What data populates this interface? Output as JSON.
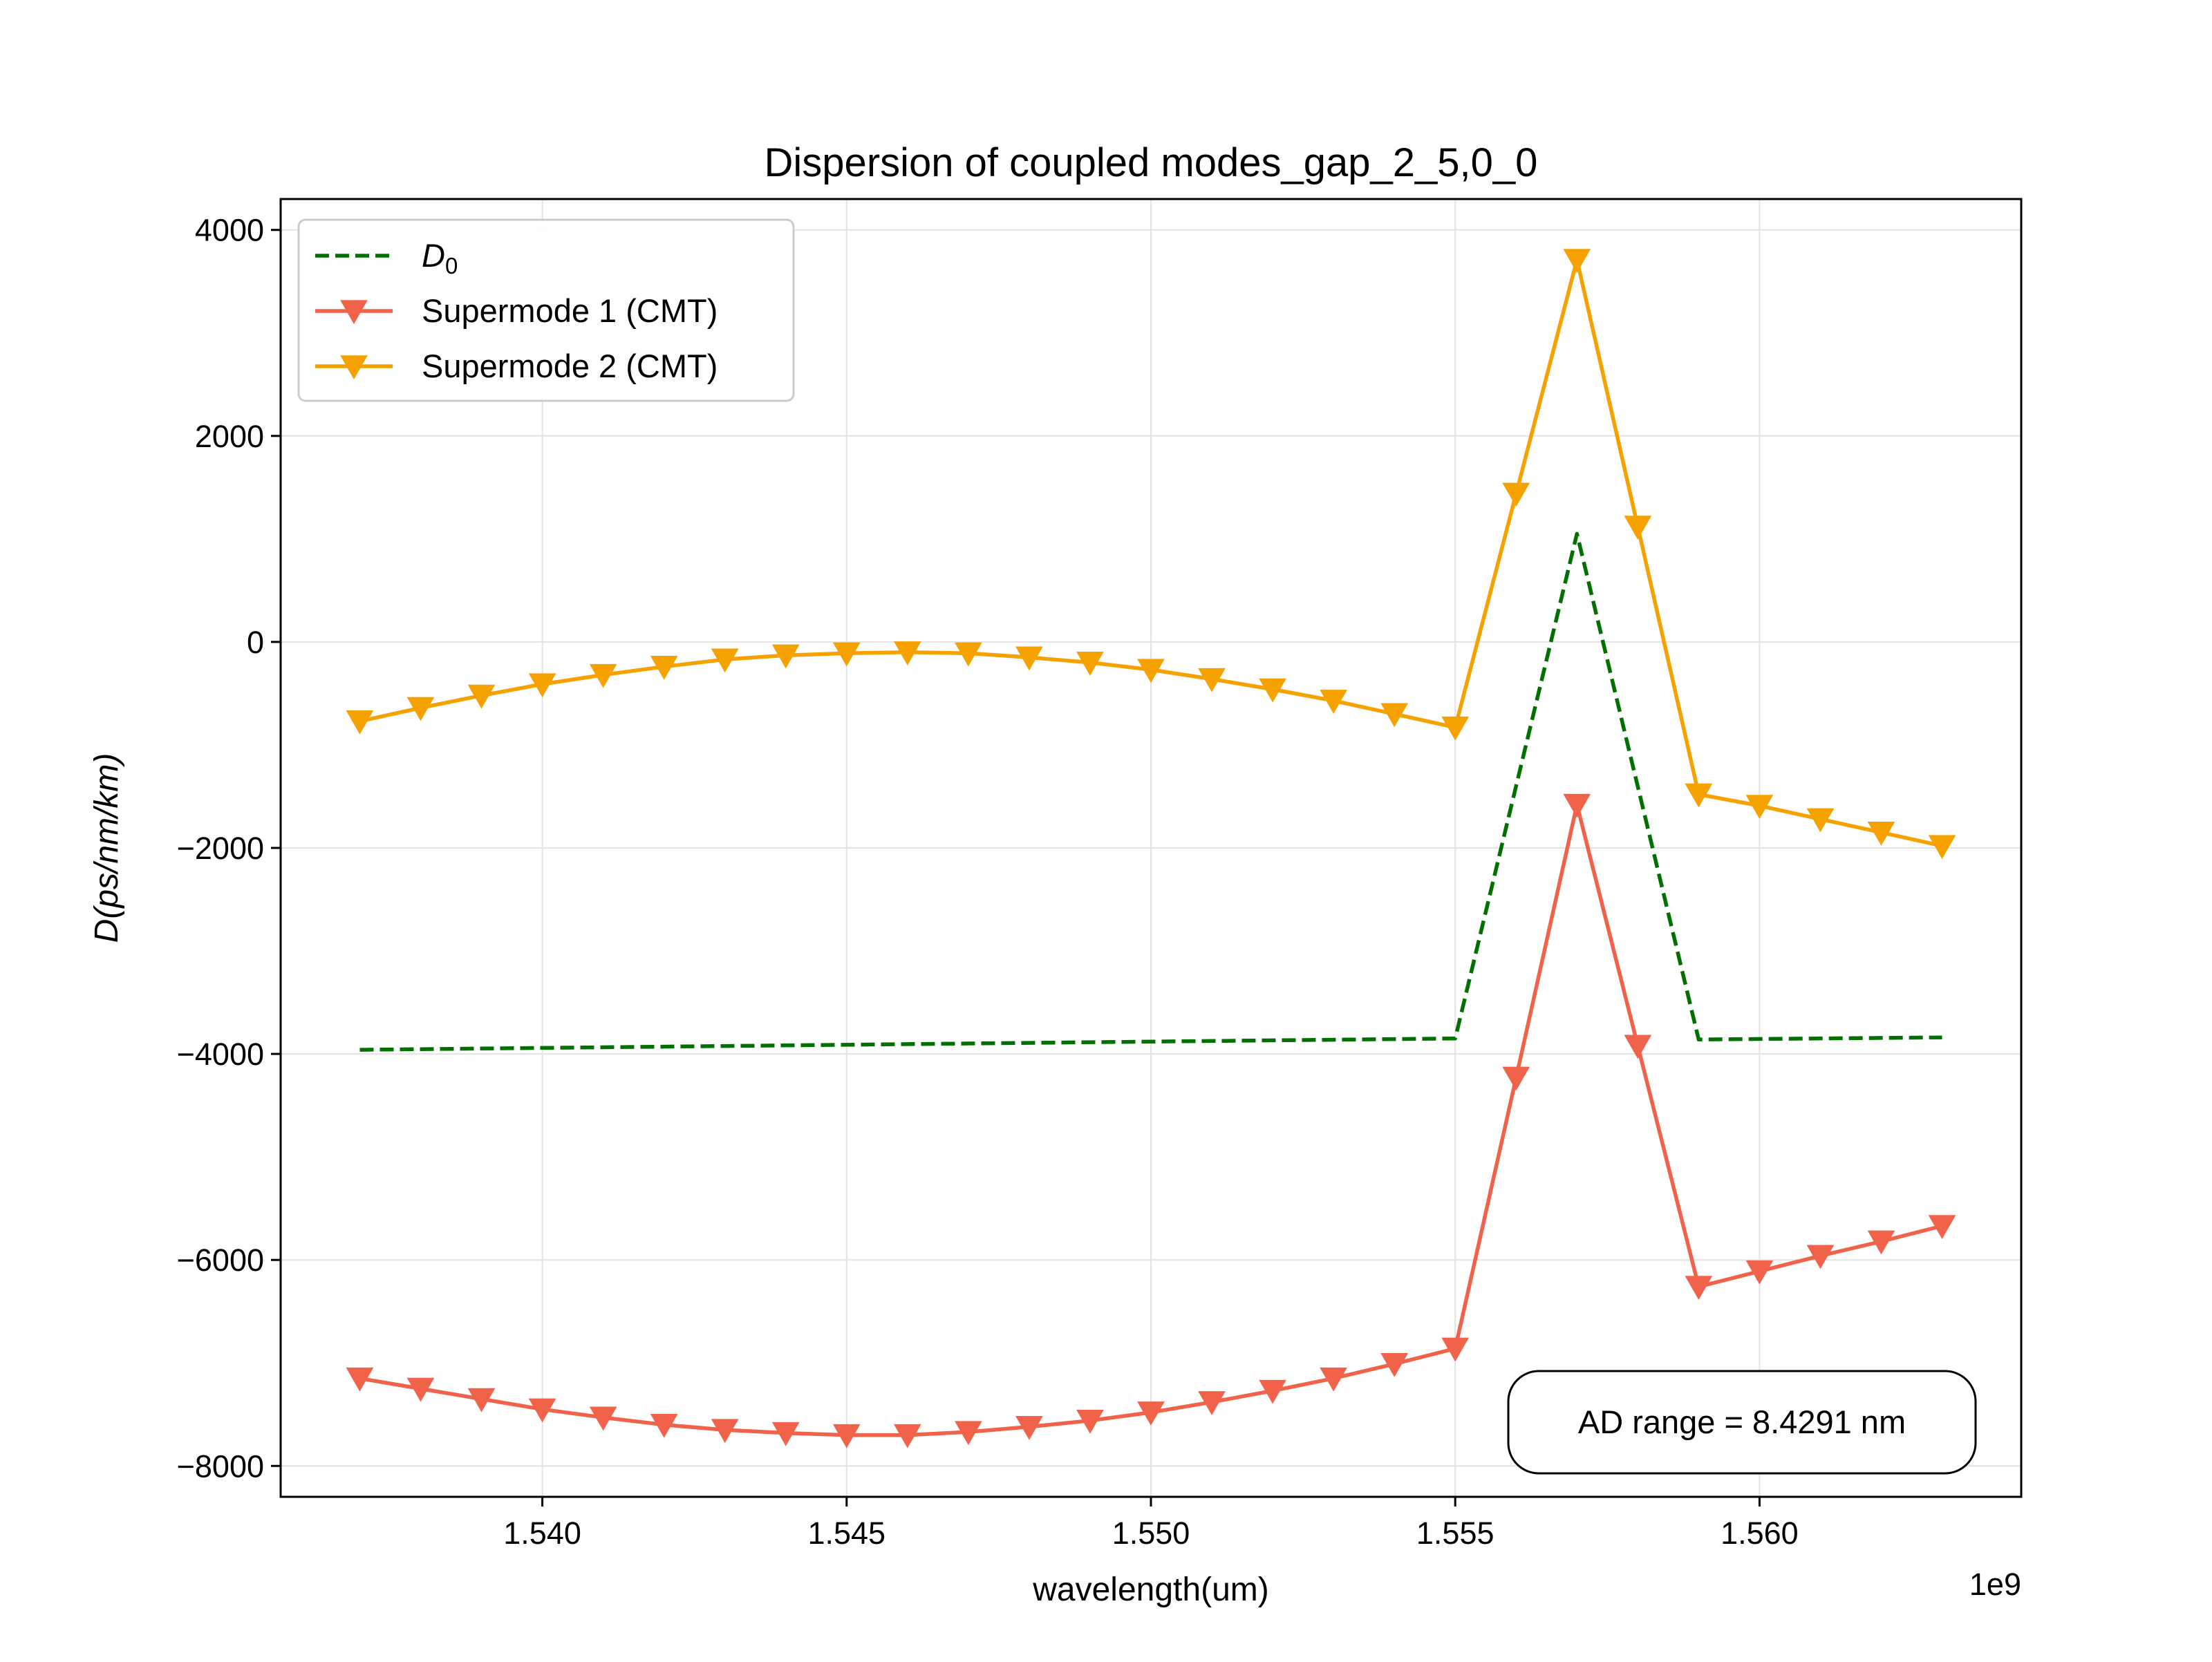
{
  "chart_data": {
    "type": "line",
    "title": "Dispersion of coupled modes_gap_2_5,0_0",
    "xlabel": "wavelength(um)",
    "ylabel": "D(ps/nm/km)",
    "x_offset_label": "1e9",
    "xlim": [
      1.5357,
      1.5643
    ],
    "ylim": [
      -8300,
      4300
    ],
    "xticks": [
      1.54,
      1.545,
      1.55,
      1.555,
      1.56
    ],
    "xtick_labels": [
      "1.540",
      "1.545",
      "1.550",
      "1.555",
      "1.560"
    ],
    "yticks": [
      -8000,
      -6000,
      -4000,
      -2000,
      0,
      2000,
      4000
    ],
    "ytick_labels": [
      "−8000",
      "−6000",
      "−4000",
      "−2000",
      "0",
      "2000",
      "4000"
    ],
    "grid": true,
    "legend_position": "top-left",
    "x": [
      1.537,
      1.538,
      1.539,
      1.54,
      1.541,
      1.542,
      1.543,
      1.544,
      1.545,
      1.546,
      1.547,
      1.548,
      1.549,
      1.55,
      1.551,
      1.552,
      1.553,
      1.554,
      1.555,
      1.556,
      1.557,
      1.558,
      1.559,
      1.56,
      1.561,
      1.562,
      1.563
    ],
    "series": [
      {
        "name": "D0",
        "legend_main": "D",
        "legend_sub": "0",
        "color": "#007000",
        "style": "dashed",
        "marker": "none",
        "x": [
          1.537,
          1.555,
          1.557,
          1.559,
          1.563
        ],
        "values": [
          -3960,
          -3850,
          1050,
          -3860,
          -3840
        ]
      },
      {
        "name": "Supermode 1 (CMT)",
        "color": "#f0634a",
        "style": "solid",
        "marker": "triangle-down",
        "values": [
          -7150,
          -7250,
          -7350,
          -7450,
          -7530,
          -7600,
          -7650,
          -7680,
          -7700,
          -7700,
          -7670,
          -7620,
          -7560,
          -7480,
          -7380,
          -7270,
          -7150,
          -7010,
          -6860,
          -4230,
          -1580,
          -3920,
          -6260,
          -6110,
          -5960,
          -5820,
          -5670
        ]
      },
      {
        "name": "Supermode 2 (CMT)",
        "color": "#f5a100",
        "style": "solid",
        "marker": "triangle-down",
        "values": [
          -770,
          -640,
          -520,
          -410,
          -320,
          -240,
          -170,
          -130,
          -110,
          -100,
          -110,
          -150,
          -200,
          -270,
          -360,
          -460,
          -570,
          -700,
          -830,
          1440,
          3710,
          1120,
          -1480,
          -1590,
          -1720,
          -1850,
          -1980
        ]
      }
    ],
    "annotation": "AD range = 8.4291 nm"
  }
}
